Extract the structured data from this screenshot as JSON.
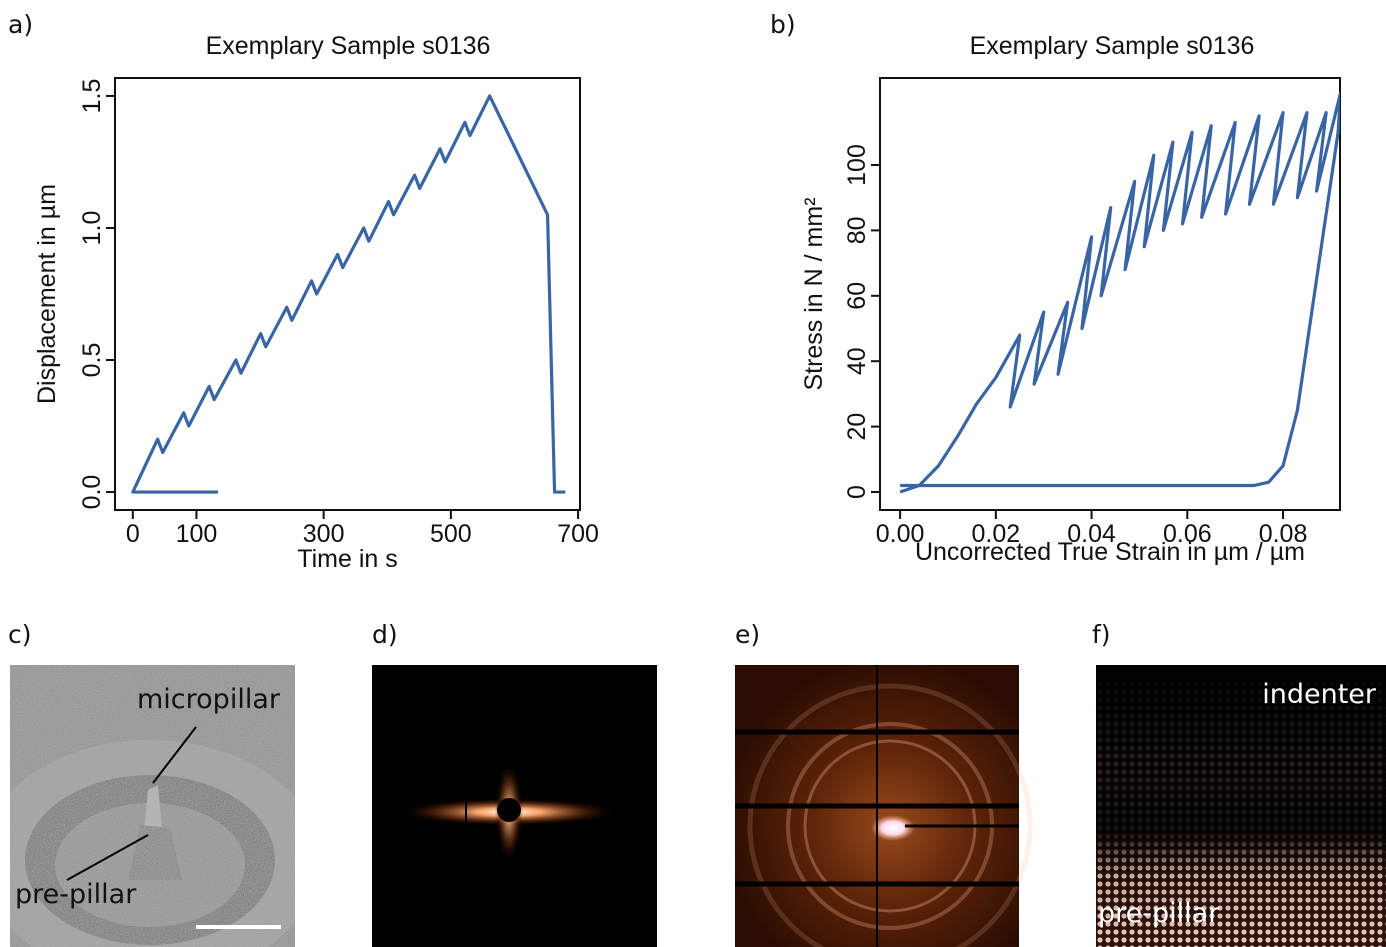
{
  "chart_data": [
    {
      "type": "line",
      "panel_label": "a)",
      "title": "Exemplary Sample s0136",
      "x_label": "Time in s",
      "y_label": "Displacement in µm",
      "color": "#3a65a5",
      "x": [
        134,
        0,
        39,
        47,
        80,
        88,
        120,
        128,
        162,
        170,
        201,
        209,
        242,
        250,
        281,
        289,
        322,
        330,
        363,
        371,
        402,
        410,
        443,
        451,
        483,
        491,
        522,
        530,
        561,
        652,
        663,
        672,
        680
      ],
      "values": [
        0,
        0,
        0.2,
        0.15,
        0.3,
        0.25,
        0.4,
        0.35,
        0.5,
        0.45,
        0.6,
        0.55,
        0.7,
        0.65,
        0.8,
        0.75,
        0.9,
        0.85,
        1,
        0.95,
        1.1,
        1.05,
        1.2,
        1.15,
        1.3,
        1.25,
        1.4,
        1.35,
        1.5,
        1.05,
        0,
        0,
        0
      ],
      "xlim": [
        -28,
        703
      ],
      "ylim": [
        -0.068,
        1.568
      ],
      "xticks": [
        0,
        100,
        300,
        500,
        700
      ],
      "yticks": [
        {
          "value": 0,
          "label": "0.0"
        },
        0.5,
        {
          "value": 1,
          "label": "1.0"
        },
        1.5
      ]
    },
    {
      "type": "line",
      "panel_label": "b)",
      "title": "Exemplary Sample s0136",
      "x_label": "Uncorrected True Strain in µm / µm",
      "y_label": "Stress in N / mm²",
      "color": "#3a65a5",
      "x": [
        0,
        0.004,
        0.008,
        0.012,
        0.016,
        0.02,
        0.025,
        0.023,
        0.03,
        0.028,
        0.035,
        0.033,
        0.04,
        0.038,
        0.044,
        0.042,
        0.049,
        0.047,
        0.053,
        0.051,
        0.057,
        0.055,
        0.061,
        0.059,
        0.065,
        0.063,
        0.07,
        0.068,
        0.075,
        0.073,
        0.08,
        0.078,
        0.085,
        0.083,
        0.089,
        0.087,
        0.092,
        0.0915,
        0.089,
        0.086,
        0.083,
        0.08,
        0.077,
        0.074,
        0
      ],
      "values": [
        0,
        2,
        8,
        17,
        27,
        35,
        48,
        26,
        55,
        33,
        58,
        36,
        78,
        50,
        87,
        60,
        95,
        68,
        103,
        75,
        107,
        80,
        110,
        82,
        112,
        84,
        113,
        85,
        115,
        88,
        116,
        88,
        116,
        90,
        116,
        92,
        122,
        110,
        85,
        55,
        25,
        8,
        3,
        2,
        2
      ],
      "xlim": [
        -0.0042,
        0.0919
      ],
      "ylim": [
        -5.5,
        126.6
      ],
      "xticks": [
        {
          "value": 0,
          "label": "0.00"
        },
        0.02,
        0.04,
        0.06,
        0.08
      ],
      "yticks": [
        0,
        20,
        40,
        60,
        80,
        100
      ]
    }
  ],
  "panels": [
    {
      "label": "c)",
      "annotations": [
        "micropillar",
        "pre-pillar"
      ]
    },
    {
      "label": "d)"
    },
    {
      "label": "e)"
    },
    {
      "label": "f)",
      "annotations": [
        "indenter",
        "pre-pillar"
      ]
    }
  ]
}
